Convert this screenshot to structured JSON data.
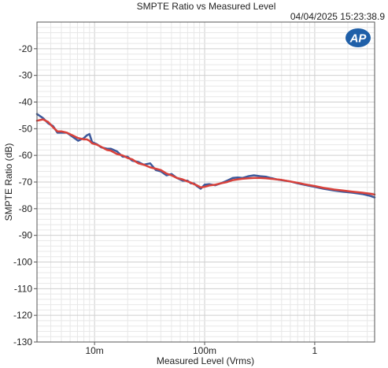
{
  "chart_data": {
    "type": "line",
    "title": "SMPTE Ratio vs Measured Level",
    "timestamp": "04/04/2025 15:23:38.9",
    "logo": "AP",
    "xlabel": "Measured Level (Vrms)",
    "ylabel": "SMPTE Ratio (dB)",
    "x_scale": "log",
    "xlim": [
      0.003,
      3.5
    ],
    "ylim": [
      -130,
      -10
    ],
    "x_ticks": [
      {
        "value": 0.01,
        "label": "10m"
      },
      {
        "value": 0.1,
        "label": "100m"
      },
      {
        "value": 1,
        "label": "1"
      }
    ],
    "y_ticks": [
      -20,
      -30,
      -40,
      -50,
      -60,
      -70,
      -80,
      -90,
      -100,
      -110,
      -120,
      -130
    ],
    "grid": true,
    "colors": {
      "series1": "#3d5a9c",
      "series2": "#d9413a",
      "axes": "#555555",
      "grid_major": "#cfcfcf",
      "grid_minor": "#e8e8e8",
      "logo_bg": "#1f5fa8"
    },
    "series": [
      {
        "points": [
          [
            0.003,
            -44.5
          ],
          [
            0.0034,
            -46
          ],
          [
            0.0038,
            -48
          ],
          [
            0.0042,
            -49
          ],
          [
            0.0046,
            -51.5
          ],
          [
            0.005,
            -51.5
          ],
          [
            0.0056,
            -51.5
          ],
          [
            0.0063,
            -53
          ],
          [
            0.0071,
            -54.5
          ],
          [
            0.008,
            -53.5
          ],
          [
            0.0085,
            -52.5
          ],
          [
            0.009,
            -52
          ],
          [
            0.0095,
            -55
          ],
          [
            0.0105,
            -55.8
          ],
          [
            0.0115,
            -57
          ],
          [
            0.013,
            -57.5
          ],
          [
            0.014,
            -57.5
          ],
          [
            0.016,
            -58.5
          ],
          [
            0.018,
            -60.5
          ],
          [
            0.02,
            -60.5
          ],
          [
            0.022,
            -62
          ],
          [
            0.025,
            -62.5
          ],
          [
            0.028,
            -63.5
          ],
          [
            0.032,
            -63
          ],
          [
            0.036,
            -65.5
          ],
          [
            0.04,
            -66
          ],
          [
            0.045,
            -67.5
          ],
          [
            0.05,
            -67
          ],
          [
            0.056,
            -68.5
          ],
          [
            0.063,
            -69.5
          ],
          [
            0.07,
            -69.5
          ],
          [
            0.075,
            -70.5
          ],
          [
            0.08,
            -70.5
          ],
          [
            0.085,
            -71.5
          ],
          [
            0.092,
            -72.5
          ],
          [
            0.1,
            -71
          ],
          [
            0.11,
            -70.8
          ],
          [
            0.125,
            -71.2
          ],
          [
            0.14,
            -70.5
          ],
          [
            0.16,
            -69.5
          ],
          [
            0.18,
            -68.5
          ],
          [
            0.2,
            -68.3
          ],
          [
            0.22,
            -68.5
          ],
          [
            0.25,
            -67.8
          ],
          [
            0.28,
            -67.5
          ],
          [
            0.32,
            -67.8
          ],
          [
            0.36,
            -68
          ],
          [
            0.4,
            -68.5
          ],
          [
            0.45,
            -69
          ],
          [
            0.5,
            -69.3
          ],
          [
            0.6,
            -69.8
          ],
          [
            0.7,
            -70.5
          ],
          [
            0.8,
            -71
          ],
          [
            1.0,
            -71.8
          ],
          [
            1.2,
            -72.5
          ],
          [
            1.5,
            -73.2
          ],
          [
            1.8,
            -73.6
          ],
          [
            2.2,
            -74
          ],
          [
            2.7,
            -74.5
          ],
          [
            3.2,
            -75.2
          ],
          [
            3.5,
            -75.8
          ]
        ]
      },
      {
        "points": [
          [
            0.003,
            -47
          ],
          [
            0.0034,
            -46.5
          ],
          [
            0.0038,
            -47.5
          ],
          [
            0.0042,
            -49.5
          ],
          [
            0.0046,
            -51
          ],
          [
            0.005,
            -51
          ],
          [
            0.0056,
            -51.5
          ],
          [
            0.0063,
            -52.5
          ],
          [
            0.0071,
            -53.5
          ],
          [
            0.008,
            -54
          ],
          [
            0.0085,
            -54
          ],
          [
            0.009,
            -54.5
          ],
          [
            0.0095,
            -55.5
          ],
          [
            0.0105,
            -56
          ],
          [
            0.0115,
            -56.8
          ],
          [
            0.013,
            -58
          ],
          [
            0.014,
            -58.2
          ],
          [
            0.016,
            -59.5
          ],
          [
            0.018,
            -60
          ],
          [
            0.02,
            -61
          ],
          [
            0.022,
            -61.5
          ],
          [
            0.025,
            -63
          ],
          [
            0.028,
            -63.5
          ],
          [
            0.032,
            -64.5
          ],
          [
            0.036,
            -65
          ],
          [
            0.04,
            -65.5
          ],
          [
            0.045,
            -66.8
          ],
          [
            0.05,
            -67.5
          ],
          [
            0.056,
            -68.5
          ],
          [
            0.063,
            -69
          ],
          [
            0.07,
            -69.8
          ],
          [
            0.075,
            -70.2
          ],
          [
            0.08,
            -70.8
          ],
          [
            0.085,
            -71.2
          ],
          [
            0.092,
            -72
          ],
          [
            0.1,
            -71.8
          ],
          [
            0.11,
            -71.3
          ],
          [
            0.125,
            -71
          ],
          [
            0.14,
            -70.5
          ],
          [
            0.16,
            -70
          ],
          [
            0.18,
            -69.3
          ],
          [
            0.2,
            -69
          ],
          [
            0.22,
            -68.8
          ],
          [
            0.25,
            -68.6
          ],
          [
            0.28,
            -68.5
          ],
          [
            0.32,
            -68.5
          ],
          [
            0.36,
            -68.6
          ],
          [
            0.4,
            -68.8
          ],
          [
            0.45,
            -69
          ],
          [
            0.5,
            -69.2
          ],
          [
            0.6,
            -69.8
          ],
          [
            0.7,
            -70.3
          ],
          [
            0.8,
            -70.8
          ],
          [
            1.0,
            -71.5
          ],
          [
            1.2,
            -72.2
          ],
          [
            1.5,
            -72.8
          ],
          [
            1.8,
            -73.2
          ],
          [
            2.2,
            -73.6
          ],
          [
            2.7,
            -74
          ],
          [
            3.2,
            -74.4
          ],
          [
            3.5,
            -74.7
          ]
        ]
      }
    ]
  }
}
